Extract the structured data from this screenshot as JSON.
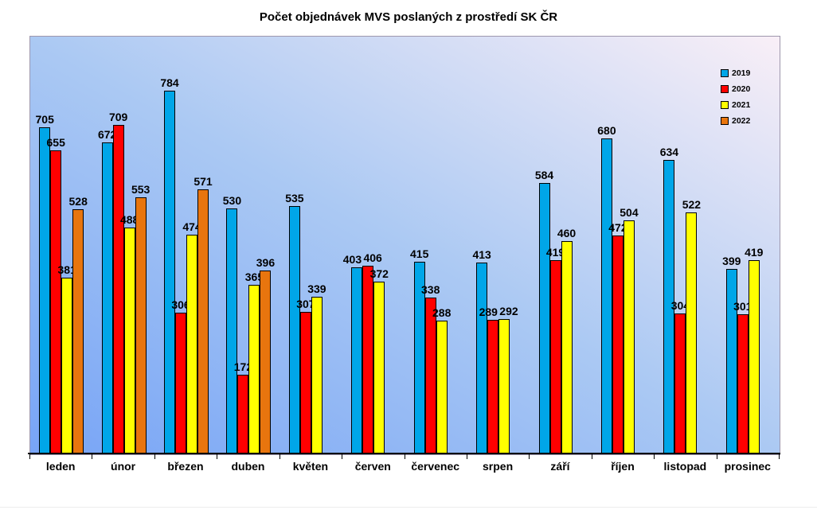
{
  "chart_data": {
    "type": "bar",
    "title": "Počet objednávek MVS poslaných z prostředí SK ČR",
    "categories": [
      "leden",
      "únor",
      "březen",
      "duben",
      "květen",
      "červen",
      "červenec",
      "srpen",
      "září",
      "říjen",
      "listopad",
      "prosinec"
    ],
    "series": [
      {
        "name": "2019",
        "color": "#00A6E8",
        "values": [
          705,
          672,
          784,
          530,
          535,
          403,
          415,
          413,
          584,
          680,
          634,
          399
        ]
      },
      {
        "name": "2020",
        "color": "#FF0000",
        "values": [
          655,
          709,
          306,
          172,
          307,
          406,
          338,
          289,
          419,
          472,
          304,
          301
        ]
      },
      {
        "name": "2021",
        "color": "#FFFF00",
        "values": [
          381,
          488,
          474,
          365,
          339,
          372,
          288,
          292,
          460,
          504,
          522,
          419
        ]
      },
      {
        "name": "2022",
        "color": "#E8750E",
        "values": [
          528,
          553,
          571,
          396,
          null,
          null,
          null,
          null,
          null,
          null,
          null,
          null
        ]
      }
    ],
    "ylim": [
      0,
      900
    ],
    "xlabel": "",
    "ylabel": "",
    "grid": false,
    "data_labels": true,
    "legend_position": "inside-top-right"
  },
  "style": {
    "plot_gradient_bottom_left": "#77A4F6",
    "plot_gradient_mid": "#ABC9F3",
    "plot_gradient_top_right": "#F9EFF7",
    "plot_border_color": "#9E97AD",
    "bar_border_color": "#000000",
    "axis_color": "#000000",
    "text_color": "#000000",
    "page_background": "#FFFFFF"
  }
}
